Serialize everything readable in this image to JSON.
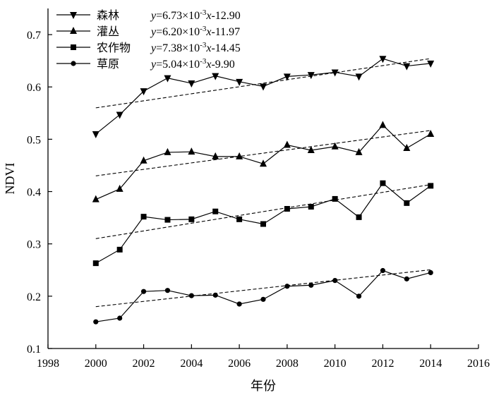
{
  "chart_data": {
    "type": "line",
    "xlabel": "年份",
    "ylabel": "NDVI",
    "xlim": [
      1998,
      2016
    ],
    "ylim": [
      0.1,
      0.75
    ],
    "x_ticks": [
      1998,
      2000,
      2002,
      2004,
      2006,
      2008,
      2010,
      2012,
      2014,
      2016
    ],
    "y_ticks": [
      0.1,
      0.2,
      0.3,
      0.4,
      0.5,
      0.6,
      0.7
    ],
    "x_tick_labels": [
      "1998",
      "2000",
      "2002",
      "2004",
      "2006",
      "2008",
      "2010",
      "2012",
      "2014",
      "2016"
    ],
    "y_tick_labels": [
      "0.1",
      "0.2",
      "0.3",
      "0.4",
      "0.5",
      "0.6",
      "0.7"
    ],
    "grid": false,
    "legend_position": "top-left",
    "x": [
      2000,
      2001,
      2002,
      2003,
      2004,
      2005,
      2006,
      2007,
      2008,
      2009,
      2010,
      2011,
      2012,
      2013,
      2014
    ],
    "series": [
      {
        "name": "森林",
        "marker": "triangle-down",
        "equation": {
          "prefix": "y",
          "main": "=6.73×10",
          "sup": "-3",
          "var": "x",
          "rest": "-12.90"
        },
        "slope": 0.00673,
        "intercept": -12.9,
        "values": [
          0.51,
          0.547,
          0.592,
          0.617,
          0.607,
          0.621,
          0.61,
          0.601,
          0.62,
          0.623,
          0.628,
          0.62,
          0.654,
          0.64,
          0.645
        ]
      },
      {
        "name": "灌丛",
        "marker": "triangle-up",
        "equation": {
          "prefix": "y",
          "main": "=6.20×10",
          "sup": "-3",
          "var": "x",
          "rest": "-11.97"
        },
        "slope": 0.0062,
        "intercept": -11.97,
        "values": [
          0.385,
          0.405,
          0.459,
          0.475,
          0.476,
          0.467,
          0.467,
          0.453,
          0.489,
          0.479,
          0.486,
          0.475,
          0.527,
          0.483,
          0.51
        ]
      },
      {
        "name": "农作物",
        "marker": "square",
        "equation": {
          "prefix": "y",
          "main": "=7.38×10",
          "sup": "-3",
          "var": "x",
          "rest": "-14.45"
        },
        "slope": 0.00738,
        "intercept": -14.45,
        "values": [
          0.263,
          0.289,
          0.352,
          0.346,
          0.347,
          0.362,
          0.347,
          0.338,
          0.367,
          0.371,
          0.386,
          0.351,
          0.416,
          0.378,
          0.411
        ]
      },
      {
        "name": "草原",
        "marker": "circle",
        "equation": {
          "prefix": "y",
          "main": "=5.04×10",
          "sup": "-3",
          "var": "x",
          "rest": "-9.90"
        },
        "slope": 0.00504,
        "intercept": -9.9,
        "values": [
          0.151,
          0.158,
          0.209,
          0.211,
          0.201,
          0.202,
          0.185,
          0.194,
          0.219,
          0.221,
          0.23,
          0.2,
          0.249,
          0.233,
          0.245
        ]
      }
    ]
  }
}
